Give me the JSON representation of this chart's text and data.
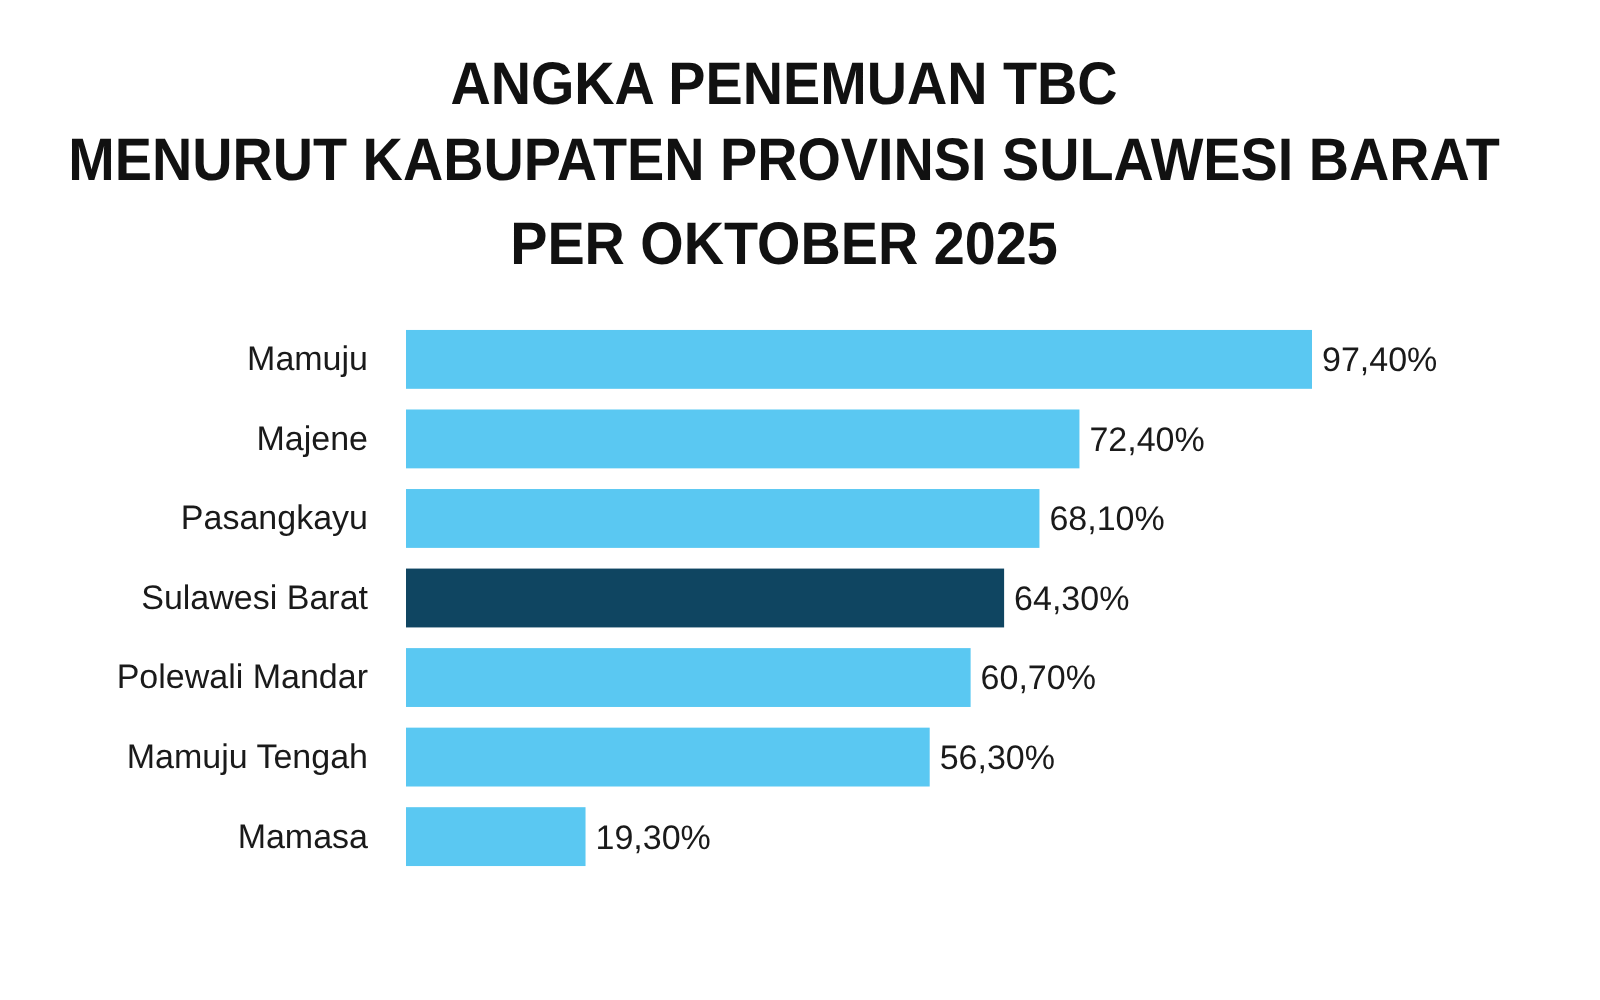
{
  "chart_data": {
    "type": "bar",
    "orientation": "horizontal",
    "title": "ANGKA PENEMUAN TBC\nMENURUT KABUPATEN PROVINSI SULAWESI BARAT\nPER OKTOBER 2025",
    "categories": [
      "Mamuju",
      "Majene",
      "Pasangkayu",
      "Sulawesi Barat",
      "Polewali Mandar",
      "Mamuju Tengah",
      "Mamasa"
    ],
    "values": [
      97.4,
      72.4,
      68.1,
      64.3,
      60.7,
      56.3,
      19.3
    ],
    "colors": [
      "#5ac8f2",
      "#5ac8f2",
      "#5ac8f2",
      "#0f4561",
      "#5ac8f2",
      "#5ac8f2",
      "#5ac8f2"
    ],
    "value_labels": [
      "97,40%",
      "72,40%",
      "68,10%",
      "64,30%",
      "60,70%",
      "56,30%",
      "19,30%"
    ],
    "tick_labels": "y"
  }
}
